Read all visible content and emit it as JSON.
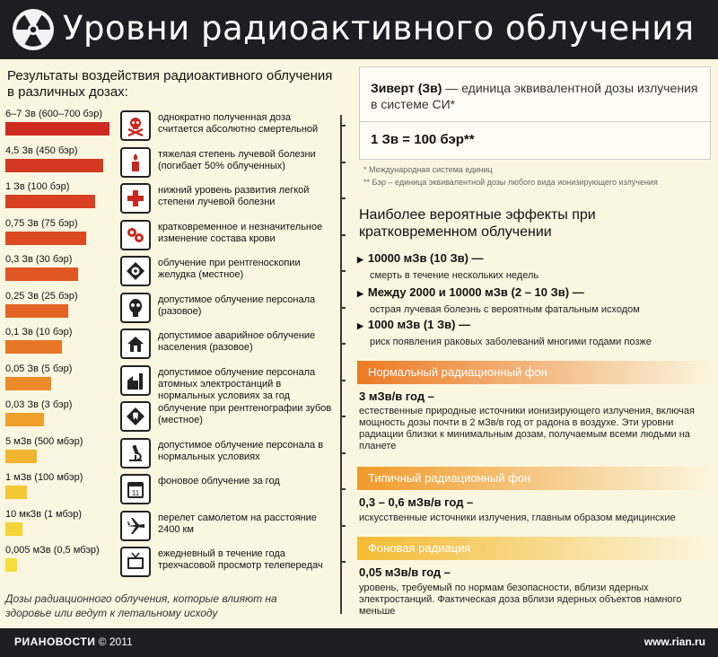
{
  "header": {
    "title": "Уровни радиоактивного облучения",
    "logo_icon": "radiation-icon"
  },
  "left": {
    "title": "Результаты воздействия радиоактивного облучения в различных дозах:",
    "rows": [
      {
        "dose": "6–7 Зв (600–700 бэр)",
        "desc": "однократно полученная доза считается абсолютно смертельной",
        "icon": "skull-crossbones-icon",
        "color": "#cf2a22"
      },
      {
        "dose": "4,5 Зв (450 бэр)",
        "desc": "тяжелая степень лучевой болезни (погибает 50% облученных)",
        "icon": "candle-icon",
        "color": "#d33822"
      },
      {
        "dose": "1 Зв (100 бэр)",
        "desc": "нижний уровень развития легкой степени лучевой болезни",
        "icon": "medical-cross-icon",
        "color": "#d84022"
      },
      {
        "dose": "0,75 Зв (75 бэр)",
        "desc": "кратковременное и незначительное изменение состава крови",
        "icon": "blood-cells-icon",
        "color": "#dc4a23"
      },
      {
        "dose": "0,3 Зв (30 бэр)",
        "desc": "облучение при рентгеноскопии желудка (местное)",
        "icon": "xray-stomach-icon",
        "color": "#e05724"
      },
      {
        "dose": "0,25 Зв (25 бэр)",
        "desc": "допустимое облучение персонала (разовое)",
        "icon": "gas-mask-icon",
        "color": "#e46525"
      },
      {
        "dose": "0,1 Зв (10 бэр)",
        "desc": "допустимое аварийное облучение населения (разовое)",
        "icon": "house-icon",
        "color": "#e87627"
      },
      {
        "dose": "0,05 Зв (5 бэр)",
        "desc": "допустимое облучение персонала атомных электростанций в нормальных условиях за год",
        "icon": "power-plant-icon",
        "color": "#ec8a29"
      },
      {
        "dose": "0,03 Зв (3 бэр)",
        "desc": "облучение при рентгенографии зубов (местное)",
        "icon": "xray-teeth-icon",
        "color": "#efa02c"
      },
      {
        "dose": "5 мЗв (500 мбэр)",
        "desc": "допустимое облучение персонала в нормальных условиях",
        "icon": "microscope-icon",
        "color": "#f2b52f"
      },
      {
        "dose": "1 мЗв (100 мбэр)",
        "desc": "фоновое облучение за год",
        "icon": "calendar-icon",
        "color": "#f4c733"
      },
      {
        "dose": "10 мкЗв (1 мбэр)",
        "desc": "перелет самолетом на расстояние 2400 км",
        "icon": "airplane-icon",
        "color": "#f5d437"
      },
      {
        "dose": "0,005 мЗв (0,5 мбэр)",
        "desc": "ежедневный в течение года трехчасовой просмотр телепередач",
        "icon": "tv-icon",
        "color": "#f6de3a"
      }
    ],
    "bar_fractions": [
      1.0,
      0.94,
      0.86,
      0.78,
      0.7,
      0.6,
      0.54,
      0.44,
      0.37,
      0.3,
      0.21,
      0.16,
      0.11
    ],
    "footer": "Дозы радиационного облучения, которые влияют на здоровье или ведут к летальному исходу"
  },
  "sievert": {
    "term": "Зиверт (Зв)",
    "definition": " — единица эквивалентной дозы излучения в системе СИ*",
    "equation": "1 Зв = 100 бэр**",
    "footnote1": "* Международная система единиц",
    "footnote2": "** Бэр – единица эквивалентной дозы любого вида ионизирующего излучения"
  },
  "effects": {
    "title": "Наиболее вероятные эффекты при кратковременном облучении",
    "items": [
      {
        "head": "10000 мЗв (10 Зв) —",
        "body": "смерть в течение нескольких недель"
      },
      {
        "head": "Между 2000 и 10000 мЗв (2 – 10 Зв) —",
        "body": "острая лучевая болезнь с вероятным фатальным исходом"
      },
      {
        "head": "1000 мЗв (1 Зв) —",
        "body": "риск появления раковых заболеваний многими годами позже"
      }
    ]
  },
  "background_sections": [
    {
      "band": "Нормальный радиационный фон",
      "value": "3 мЗв/в год –",
      "body": "естественные природные источники ионизирующего излучения, включая мощность дозы почти в 2 мЗв/в год от радона в воздухе. Эти уровни радиации близки к минимальным дозам, получаемым всеми людьми на планете",
      "color": "#ec7a24"
    },
    {
      "band": "Типичный радиационный фон",
      "value": "0,3 – 0,6 мЗв/в год –",
      "body": "искусственные источники излучения, главным образом медицинские",
      "color": "#f09a2a"
    },
    {
      "band": "Фоновая радиация",
      "value": "0,05 мЗв/в год –",
      "body": "уровень, требуемый по нормам безопасности, вблизи ядерных электростанций. Фактическая доза вблизи ядерных объектов намного меньше",
      "color": "#f4bb33"
    }
  ],
  "footer": {
    "brand": "РИАНОВОСТИ",
    "copyright": "© 2011",
    "url": "www.rian.ru"
  }
}
